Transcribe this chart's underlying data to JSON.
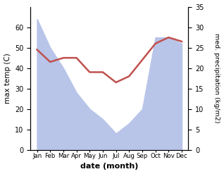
{
  "months": [
    "Jan",
    "Feb",
    "Mar",
    "Apr",
    "May",
    "Jun",
    "Jul",
    "Aug",
    "Sep",
    "Oct",
    "Nov",
    "Dec"
  ],
  "month_indices": [
    0,
    1,
    2,
    3,
    4,
    5,
    6,
    7,
    8,
    9,
    10,
    11
  ],
  "temp_max": [
    49,
    43,
    45,
    45,
    38,
    38,
    33,
    36,
    44,
    52,
    55,
    53
  ],
  "precip_fill_tempscale": [
    64,
    50,
    40,
    28,
    20,
    15,
    8,
    13,
    20,
    55,
    55,
    52
  ],
  "temp_color": "#c0504d",
  "precip_fill_color": "#b8c4e8",
  "temp_ylim": [
    0,
    70
  ],
  "precip_ylim": [
    0,
    35
  ],
  "temp_yticks": [
    0,
    10,
    20,
    30,
    40,
    50,
    60
  ],
  "precip_yticks": [
    0,
    5,
    10,
    15,
    20,
    25,
    30,
    35
  ],
  "xlabel": "date (month)",
  "ylabel_left": "max temp (C)",
  "ylabel_right": "med. precipitation (kg/m2)"
}
